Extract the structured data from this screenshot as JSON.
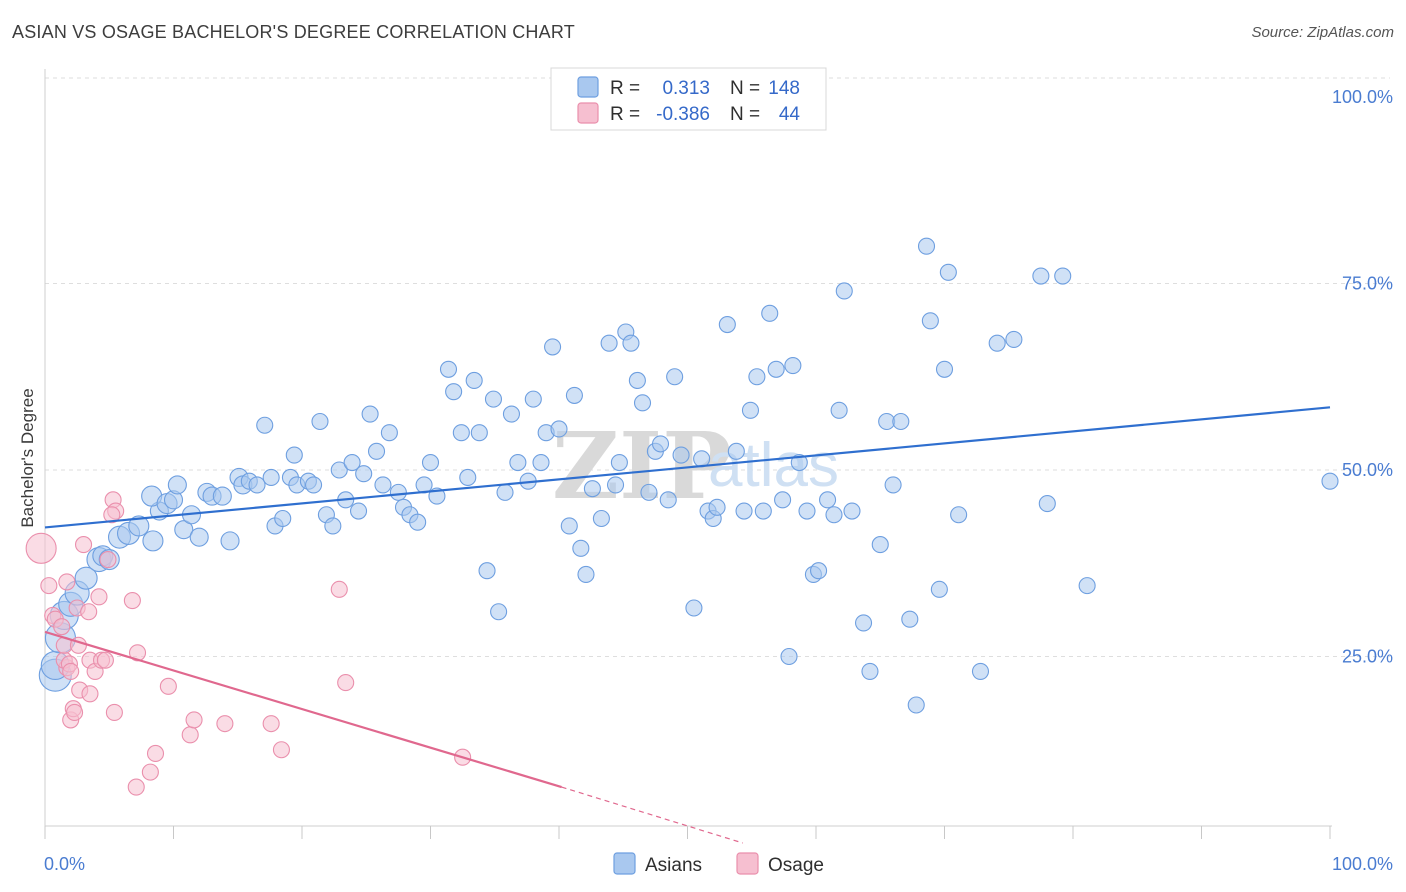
{
  "header": {
    "title": "ASIAN VS OSAGE BACHELOR'S DEGREE CORRELATION CHART",
    "source": "Source: ZipAtlas.com"
  },
  "watermark": {
    "part1": "ZIP",
    "part2": "atlas"
  },
  "colors": {
    "asian_fill": "#a9c8ef",
    "asian_stroke": "#6e9fe0",
    "asian_line": "#2f6fcf",
    "osage_fill": "#f6bfd0",
    "osage_stroke": "#ea8fac",
    "osage_line": "#e0688e",
    "tick_text": "#4a7cd1",
    "grid": "#dedede"
  },
  "legend_top": {
    "rows": [
      {
        "r_label": "R =",
        "r_value": "0.313",
        "n_label": "N =",
        "n_value": "148"
      },
      {
        "r_label": "R =",
        "r_value": "-0.386",
        "n_label": "N =",
        "n_value": "44"
      }
    ]
  },
  "legend_bottom": {
    "items": [
      "Asians",
      "Osage"
    ]
  },
  "chart_data": {
    "type": "scatter",
    "title": "ASIAN VS OSAGE BACHELOR'S DEGREE CORRELATION CHART",
    "xlabel": "",
    "ylabel": "Bachelor's Degree",
    "xlim": [
      0,
      100
    ],
    "ylim": [
      0,
      100
    ],
    "x_tick_labels": [
      "0.0%",
      "100.0%"
    ],
    "y_ticks": [
      25,
      50,
      75,
      100
    ],
    "y_tick_labels": [
      "25.0%",
      "50.0%",
      "75.0%",
      "100.0%"
    ],
    "grid": true,
    "legend_position": "top-center",
    "series": [
      {
        "name": "Asians",
        "r": 0.313,
        "n": 148,
        "trend": {
          "x": [
            0,
            100
          ],
          "y": [
            42.3,
            58.4
          ]
        },
        "points": [
          [
            0.8,
            22.5,
            1.6
          ],
          [
            0.8,
            23.8,
            1.4
          ],
          [
            1.2,
            27.5,
            1.5
          ],
          [
            1.5,
            30.5,
            1.4
          ],
          [
            2.0,
            32.0,
            1.2
          ],
          [
            2.5,
            33.5,
            1.2
          ],
          [
            3.2,
            35.5,
            1.1
          ],
          [
            4.2,
            38.0,
            1.2
          ],
          [
            4.5,
            38.5,
            1.0
          ],
          [
            5.0,
            38.0,
            1.0
          ],
          [
            5.8,
            41.0,
            1.1
          ],
          [
            6.5,
            41.5,
            1.1
          ],
          [
            7.3,
            42.5,
            1.0
          ],
          [
            8.4,
            40.5,
            1.0
          ],
          [
            8.9,
            44.5,
            0.9
          ],
          [
            8.3,
            46.5,
            1.0
          ],
          [
            9.5,
            45.5,
            1.0
          ],
          [
            10.0,
            46.0,
            0.9
          ],
          [
            10.3,
            48.0,
            0.9
          ],
          [
            10.8,
            42.0,
            0.9
          ],
          [
            11.4,
            44.0,
            0.9
          ],
          [
            12.0,
            41.0,
            0.9
          ],
          [
            12.6,
            47.0,
            0.9
          ],
          [
            13.0,
            46.5,
            0.9
          ],
          [
            13.8,
            46.5,
            0.9
          ],
          [
            14.4,
            40.5,
            0.9
          ],
          [
            15.1,
            49.0,
            0.9
          ],
          [
            15.4,
            48.0,
            0.9
          ],
          [
            15.9,
            48.5,
            0.8
          ],
          [
            16.5,
            48.0,
            0.8
          ],
          [
            17.1,
            56.0,
            0.8
          ],
          [
            17.6,
            49.0,
            0.8
          ],
          [
            17.9,
            42.5,
            0.8
          ],
          [
            18.5,
            43.5,
            0.8
          ],
          [
            19.1,
            49.0,
            0.8
          ],
          [
            19.4,
            52.0,
            0.8
          ],
          [
            19.6,
            48.0,
            0.8
          ],
          [
            20.5,
            48.5,
            0.8
          ],
          [
            20.9,
            48.0,
            0.8
          ],
          [
            21.4,
            56.5,
            0.8
          ],
          [
            21.9,
            44.0,
            0.8
          ],
          [
            22.4,
            42.5,
            0.8
          ],
          [
            22.9,
            50.0,
            0.8
          ],
          [
            23.4,
            46.0,
            0.8
          ],
          [
            23.9,
            51.0,
            0.8
          ],
          [
            24.4,
            44.5,
            0.8
          ],
          [
            24.8,
            49.5,
            0.8
          ],
          [
            25.3,
            57.5,
            0.8
          ],
          [
            25.8,
            52.5,
            0.8
          ],
          [
            26.3,
            48.0,
            0.8
          ],
          [
            26.8,
            55.0,
            0.8
          ],
          [
            27.5,
            47.0,
            0.8
          ],
          [
            27.9,
            45.0,
            0.8
          ],
          [
            28.4,
            44.0,
            0.8
          ],
          [
            29.0,
            43.0,
            0.8
          ],
          [
            29.5,
            48.0,
            0.8
          ],
          [
            30.0,
            51.0,
            0.8
          ],
          [
            30.5,
            46.5,
            0.8
          ],
          [
            31.4,
            63.5,
            0.8
          ],
          [
            31.8,
            60.5,
            0.8
          ],
          [
            32.4,
            55.0,
            0.8
          ],
          [
            32.9,
            49.0,
            0.8
          ],
          [
            33.4,
            62.0,
            0.8
          ],
          [
            33.8,
            55.0,
            0.8
          ],
          [
            34.4,
            36.5,
            0.8
          ],
          [
            34.9,
            59.5,
            0.8
          ],
          [
            35.3,
            31.0,
            0.8
          ],
          [
            35.8,
            47.0,
            0.8
          ],
          [
            36.3,
            57.5,
            0.8
          ],
          [
            36.8,
            51.0,
            0.8
          ],
          [
            37.6,
            48.5,
            0.8
          ],
          [
            38.0,
            59.5,
            0.8
          ],
          [
            38.6,
            51.0,
            0.8
          ],
          [
            39.0,
            55.0,
            0.8
          ],
          [
            39.5,
            66.5,
            0.8
          ],
          [
            40.0,
            55.5,
            0.8
          ],
          [
            40.8,
            42.5,
            0.8
          ],
          [
            41.2,
            60.0,
            0.8
          ],
          [
            41.7,
            39.5,
            0.8
          ],
          [
            42.1,
            36.0,
            0.8
          ],
          [
            42.6,
            47.5,
            0.8
          ],
          [
            43.3,
            43.5,
            0.8
          ],
          [
            43.9,
            67.0,
            0.8
          ],
          [
            44.4,
            48.0,
            0.8
          ],
          [
            44.7,
            51.0,
            0.8
          ],
          [
            45.2,
            68.5,
            0.8
          ],
          [
            45.6,
            67.0,
            0.8
          ],
          [
            46.1,
            62.0,
            0.8
          ],
          [
            46.5,
            59.0,
            0.8
          ],
          [
            47.0,
            47.0,
            0.8
          ],
          [
            47.5,
            52.5,
            0.8
          ],
          [
            47.9,
            53.5,
            0.8
          ],
          [
            48.5,
            46.0,
            0.8
          ],
          [
            49.0,
            62.5,
            0.8
          ],
          [
            49.5,
            52.0,
            0.8
          ],
          [
            50.5,
            31.5,
            0.8
          ],
          [
            51.1,
            51.5,
            0.8
          ],
          [
            51.6,
            44.5,
            0.8
          ],
          [
            52.0,
            43.5,
            0.8
          ],
          [
            52.3,
            45.0,
            0.8
          ],
          [
            53.1,
            69.5,
            0.8
          ],
          [
            53.8,
            52.5,
            0.8
          ],
          [
            54.4,
            44.5,
            0.8
          ],
          [
            54.9,
            58.0,
            0.8
          ],
          [
            55.4,
            62.5,
            0.8
          ],
          [
            55.9,
            44.5,
            0.8
          ],
          [
            56.4,
            71.0,
            0.8
          ],
          [
            56.9,
            63.5,
            0.8
          ],
          [
            57.4,
            46.0,
            0.8
          ],
          [
            57.9,
            25.0,
            0.8
          ],
          [
            58.2,
            64.0,
            0.8
          ],
          [
            58.7,
            51.0,
            0.8
          ],
          [
            59.3,
            44.5,
            0.8
          ],
          [
            59.8,
            36.0,
            0.8
          ],
          [
            60.2,
            36.5,
            0.8
          ],
          [
            60.9,
            46.0,
            0.8
          ],
          [
            61.4,
            44.0,
            0.8
          ],
          [
            61.8,
            58.0,
            0.8
          ],
          [
            62.2,
            74.0,
            0.8
          ],
          [
            62.8,
            44.5,
            0.8
          ],
          [
            63.7,
            29.5,
            0.8
          ],
          [
            64.2,
            23.0,
            0.8
          ],
          [
            65.0,
            40.0,
            0.8
          ],
          [
            65.5,
            56.5,
            0.8
          ],
          [
            66.0,
            48.0,
            0.8
          ],
          [
            66.6,
            56.5,
            0.8
          ],
          [
            67.3,
            30.0,
            0.8
          ],
          [
            67.8,
            18.5,
            0.8
          ],
          [
            68.6,
            80.0,
            0.8
          ],
          [
            68.9,
            70.0,
            0.8
          ],
          [
            69.6,
            34.0,
            0.8
          ],
          [
            70.0,
            63.5,
            0.8
          ],
          [
            70.3,
            76.5,
            0.8
          ],
          [
            71.1,
            44.0,
            0.8
          ],
          [
            72.8,
            23.0,
            0.8
          ],
          [
            74.1,
            67.0,
            0.8
          ],
          [
            75.4,
            67.5,
            0.8
          ],
          [
            78.0,
            45.5,
            0.8
          ],
          [
            77.5,
            76.0,
            0.8
          ],
          [
            79.2,
            76.0,
            0.8
          ],
          [
            81.1,
            34.5,
            0.8
          ],
          [
            100.0,
            48.5,
            0.8
          ]
        ]
      },
      {
        "name": "Osage",
        "r": -0.386,
        "n": 44,
        "trend": {
          "x": [
            0,
            40.2
          ],
          "y": [
            28.3,
            7.5
          ]
        },
        "trend_dashed": {
          "x": [
            40.2,
            54.3
          ],
          "y": [
            7.5,
            0
          ]
        },
        "points": [
          [
            -0.3,
            39.5,
            1.5
          ],
          [
            0.3,
            34.5,
            0.8
          ],
          [
            0.6,
            30.5,
            0.8
          ],
          [
            0.8,
            30.0,
            0.8
          ],
          [
            1.3,
            29.0,
            0.8
          ],
          [
            1.7,
            23.5,
            0.8
          ],
          [
            1.5,
            24.5,
            0.8
          ],
          [
            1.5,
            26.5,
            0.8
          ],
          [
            1.7,
            35.0,
            0.8
          ],
          [
            1.9,
            24.0,
            0.8
          ],
          [
            2.0,
            23.0,
            0.8
          ],
          [
            2.0,
            16.5,
            0.8
          ],
          [
            2.2,
            18.0,
            0.8
          ],
          [
            2.3,
            17.5,
            0.8
          ],
          [
            2.5,
            31.5,
            0.8
          ],
          [
            2.6,
            26.5,
            0.8
          ],
          [
            2.7,
            20.5,
            0.8
          ],
          [
            3.4,
            31.0,
            0.8
          ],
          [
            3.5,
            24.5,
            0.8
          ],
          [
            3.5,
            20.0,
            0.8
          ],
          [
            3.9,
            23.0,
            0.8
          ],
          [
            4.2,
            33.0,
            0.8
          ],
          [
            4.4,
            24.5,
            0.8
          ],
          [
            4.7,
            24.5,
            0.8
          ],
          [
            4.9,
            38.0,
            0.8
          ],
          [
            5.3,
            46.0,
            0.8
          ],
          [
            5.4,
            17.5,
            0.8
          ],
          [
            5.5,
            44.5,
            0.8
          ],
          [
            6.8,
            32.5,
            0.8
          ],
          [
            7.2,
            25.5,
            0.8
          ],
          [
            8.2,
            9.5,
            0.8
          ],
          [
            8.6,
            12.0,
            0.8
          ],
          [
            7.1,
            7.5,
            0.8
          ],
          [
            9.6,
            21.0,
            0.8
          ],
          [
            11.3,
            14.5,
            0.8
          ],
          [
            11.6,
            16.5,
            0.8
          ],
          [
            14.0,
            16.0,
            0.8
          ],
          [
            17.6,
            16.0,
            0.8
          ],
          [
            18.4,
            12.5,
            0.8
          ],
          [
            22.9,
            34.0,
            0.8
          ],
          [
            23.4,
            21.5,
            0.8
          ],
          [
            32.5,
            11.5,
            0.8
          ],
          [
            5.2,
            44.0,
            0.8
          ],
          [
            3.0,
            40.0,
            0.8
          ]
        ]
      }
    ]
  }
}
